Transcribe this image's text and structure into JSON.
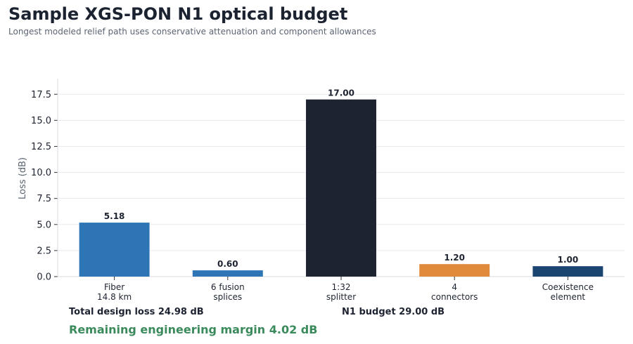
{
  "header": {
    "title": "Sample XGS-PON N1 optical budget",
    "subtitle": "Longest modeled relief path uses conservative attenuation and component allowances"
  },
  "chart_data": {
    "type": "bar",
    "title": "Sample XGS-PON N1 optical budget",
    "subtitle": "Longest modeled relief path uses conservative attenuation and component allowances",
    "xlabel": "",
    "ylabel": "Loss (dB)",
    "ylim": [
      0,
      19
    ],
    "yticks": [
      "0.0",
      "2.5",
      "5.0",
      "7.5",
      "10.0",
      "12.5",
      "15.0",
      "17.5"
    ],
    "grid": true,
    "categories": [
      [
        "Fiber",
        "14.8 km"
      ],
      [
        "6 fusion",
        "splices"
      ],
      [
        "1:32",
        "splitter"
      ],
      [
        "4",
        "connectors"
      ],
      [
        "Coexistence",
        "element"
      ]
    ],
    "values": [
      5.18,
      0.6,
      17.0,
      1.2,
      1.0
    ],
    "value_labels": [
      "5.18",
      "0.60",
      "17.00",
      "1.20",
      "1.00"
    ],
    "colors": [
      "#2e75b6",
      "#2e75b6",
      "#1d2330",
      "#e08a3c",
      "#1b4571"
    ]
  },
  "footer": {
    "total": "Total design loss 24.98 dB",
    "budget": "N1 budget 29.00 dB",
    "margin": "Remaining engineering margin 4.02 dB",
    "margin_color": "#3a8a5c"
  }
}
